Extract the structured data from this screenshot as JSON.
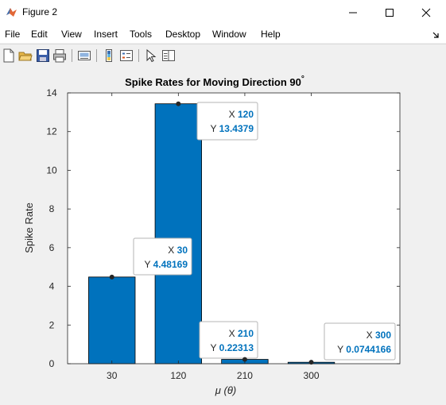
{
  "window": {
    "title": "Figure 2"
  },
  "menu": [
    "File",
    "Edit",
    "View",
    "Insert",
    "Tools",
    "Desktop",
    "Window",
    "Help"
  ],
  "toolbar_icons": [
    "new-figure-icon",
    "open-file-icon",
    "save-icon",
    "print-icon",
    "link-plot-icon",
    "colorbar-icon",
    "legend-icon",
    "edit-plot-icon",
    "property-inspector-icon"
  ],
  "colors": {
    "bar": "#0072bd",
    "datatip_value": "#0072bd"
  },
  "chart_data": {
    "type": "bar",
    "title": "Spike Rates for Moving Direction 90",
    "title_superscript": "°",
    "xlabel": "μ (θ)",
    "ylabel": "Spike Rate",
    "categories": [
      "30",
      "120",
      "210",
      "300"
    ],
    "x": [
      30,
      120,
      210,
      300
    ],
    "values": [
      4.48169,
      13.4379,
      0.22313,
      0.0744166
    ],
    "ylim": [
      0,
      14
    ],
    "yticks": [
      "0",
      "2",
      "4",
      "6",
      "8",
      "10",
      "12",
      "14"
    ],
    "grid": false,
    "datatips": [
      {
        "x_label": "X",
        "x_value": "30",
        "y_label": "Y",
        "y_value": "4.48169"
      },
      {
        "x_label": "X",
        "x_value": "120",
        "y_label": "Y",
        "y_value": "13.4379"
      },
      {
        "x_label": "X",
        "x_value": "210",
        "y_label": "Y",
        "y_value": "0.22313"
      },
      {
        "x_label": "X",
        "x_value": "300",
        "y_label": "Y",
        "y_value": "0.0744166"
      }
    ]
  }
}
